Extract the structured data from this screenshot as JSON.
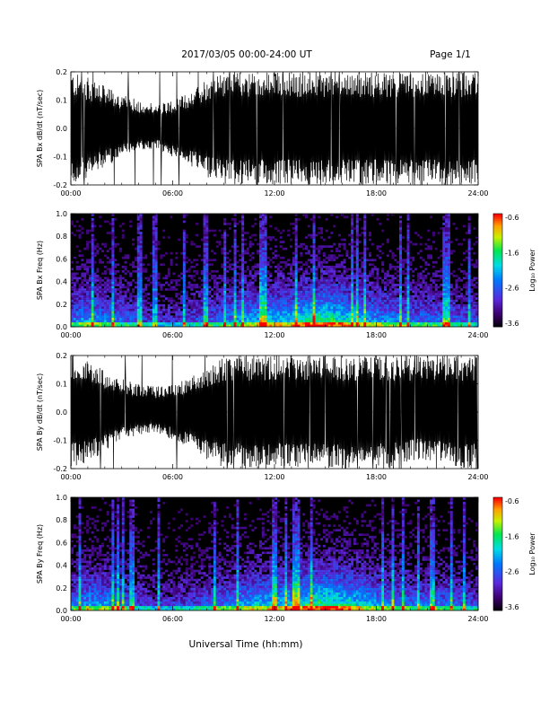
{
  "header": {
    "title": "2017/03/05  00:00-24:00 UT",
    "page": "Page 1/1"
  },
  "footer": {
    "xlabel": "Universal Time (hh:mm)"
  },
  "colors": {
    "trace": "#000000",
    "background": "#ffffff",
    "spectrogram_background": "#000000"
  },
  "chart_data": [
    {
      "type": "line",
      "title": "",
      "ylabel": "SPA Bx dB/dt (nT/sec)",
      "xlabel": "",
      "x_unit": "hours UT",
      "xlim": [
        0,
        24
      ],
      "ylim": [
        -0.2,
        0.2
      ],
      "x_tick_labels": [
        "00:00",
        "06:00",
        "12:00",
        "18:00",
        "24:00"
      ],
      "y_tick_labels": [
        "0.2",
        "0.1",
        "0.0",
        "-0.1",
        "-0.2"
      ],
      "envelope": {
        "hours": [
          0,
          1,
          2,
          3,
          4,
          5,
          6,
          7,
          8,
          9,
          10,
          11,
          12,
          13,
          14,
          15,
          16,
          17,
          18,
          19,
          20,
          21,
          22,
          23,
          24
        ],
        "upper": [
          0.2,
          0.18,
          0.15,
          0.12,
          0.1,
          0.09,
          0.1,
          0.13,
          0.18,
          0.2,
          0.2,
          0.2,
          0.2,
          0.2,
          0.2,
          0.2,
          0.2,
          0.2,
          0.2,
          0.2,
          0.2,
          0.2,
          0.2,
          0.2,
          0.2
        ],
        "lower": [
          -0.2,
          -0.18,
          -0.14,
          -0.1,
          -0.08,
          -0.07,
          -0.1,
          -0.13,
          -0.18,
          -0.2,
          -0.2,
          -0.2,
          -0.2,
          -0.2,
          -0.2,
          -0.2,
          -0.2,
          -0.2,
          -0.2,
          -0.2,
          -0.2,
          -0.2,
          -0.2,
          -0.2,
          -0.2
        ]
      }
    },
    {
      "type": "heatmap",
      "title": "",
      "ylabel": "SPA Bx Freq (Hz)",
      "xlabel": "",
      "xlim": [
        0,
        24
      ],
      "ylim": [
        0,
        1.0
      ],
      "x_tick_labels": [
        "00:00",
        "06:00",
        "12:00",
        "18:00",
        "24:00"
      ],
      "y_tick_labels": [
        "1.0",
        "0.8",
        "0.6",
        "0.4",
        "0.2",
        "0.0"
      ],
      "colorbar": {
        "label": "Log₁₀ Power",
        "range": [
          -3.6,
          -0.6
        ],
        "tick_labels": [
          "-0.6",
          "-1.6",
          "-2.6",
          "-3.6"
        ]
      },
      "activity_by_hour": {
        "hours": [
          0,
          1,
          2,
          3,
          4,
          5,
          6,
          7,
          8,
          9,
          10,
          11,
          12,
          13,
          14,
          15,
          16,
          17,
          18,
          19,
          20,
          21,
          22,
          23,
          24
        ],
        "level": [
          0.45,
          0.55,
          0.5,
          0.45,
          0.35,
          0.3,
          0.3,
          0.35,
          0.4,
          0.45,
          0.55,
          0.6,
          0.62,
          0.65,
          0.75,
          0.8,
          0.7,
          0.6,
          0.55,
          0.5,
          0.45,
          0.45,
          0.45,
          0.4,
          0.35
        ]
      }
    },
    {
      "type": "line",
      "title": "",
      "ylabel": "SPA By dB/dt (nT/sec)",
      "xlabel": "",
      "x_unit": "hours UT",
      "xlim": [
        0,
        24
      ],
      "ylim": [
        -0.2,
        0.2
      ],
      "x_tick_labels": [
        "00:00",
        "06:00",
        "12:00",
        "18:00",
        "24:00"
      ],
      "y_tick_labels": [
        "0.2",
        "0.1",
        "0.0",
        "-0.1",
        "-0.2"
      ],
      "envelope": {
        "hours": [
          0,
          1,
          2,
          3,
          4,
          5,
          6,
          7,
          8,
          9,
          10,
          11,
          12,
          13,
          14,
          15,
          16,
          17,
          18,
          19,
          20,
          21,
          22,
          23,
          24
        ],
        "upper": [
          0.2,
          0.18,
          0.15,
          0.12,
          0.1,
          0.09,
          0.1,
          0.12,
          0.16,
          0.2,
          0.2,
          0.2,
          0.2,
          0.2,
          0.2,
          0.2,
          0.2,
          0.2,
          0.2,
          0.2,
          0.2,
          0.2,
          0.2,
          0.2,
          0.2
        ],
        "lower": [
          -0.2,
          -0.18,
          -0.14,
          -0.1,
          -0.08,
          -0.07,
          -0.1,
          -0.13,
          -0.17,
          -0.2,
          -0.2,
          -0.2,
          -0.2,
          -0.2,
          -0.2,
          -0.2,
          -0.2,
          -0.2,
          -0.2,
          -0.2,
          -0.17,
          -0.17,
          -0.18,
          -0.2,
          -0.2
        ]
      }
    },
    {
      "type": "heatmap",
      "title": "",
      "ylabel": "SPA By Freq (Hz)",
      "xlabel": "",
      "xlim": [
        0,
        24
      ],
      "ylim": [
        0,
        1.0
      ],
      "x_tick_labels": [
        "00:00",
        "06:00",
        "12:00",
        "18:00",
        "24:00"
      ],
      "y_tick_labels": [
        "1.0",
        "0.8",
        "0.6",
        "0.4",
        "0.2",
        "0.0"
      ],
      "colorbar": {
        "label": "Log₁₀ Power",
        "range": [
          -3.6,
          -0.6
        ],
        "tick_labels": [
          "-0.6",
          "-1.6",
          "-2.6",
          "-3.6"
        ]
      },
      "activity_by_hour": {
        "hours": [
          0,
          1,
          2,
          3,
          4,
          5,
          6,
          7,
          8,
          9,
          10,
          11,
          12,
          13,
          14,
          15,
          16,
          17,
          18,
          19,
          20,
          21,
          22,
          23,
          24
        ],
        "level": [
          0.45,
          0.55,
          0.55,
          0.45,
          0.35,
          0.3,
          0.3,
          0.35,
          0.4,
          0.45,
          0.55,
          0.6,
          0.62,
          0.65,
          0.75,
          0.8,
          0.72,
          0.65,
          0.55,
          0.5,
          0.45,
          0.45,
          0.45,
          0.4,
          0.35
        ]
      }
    }
  ]
}
